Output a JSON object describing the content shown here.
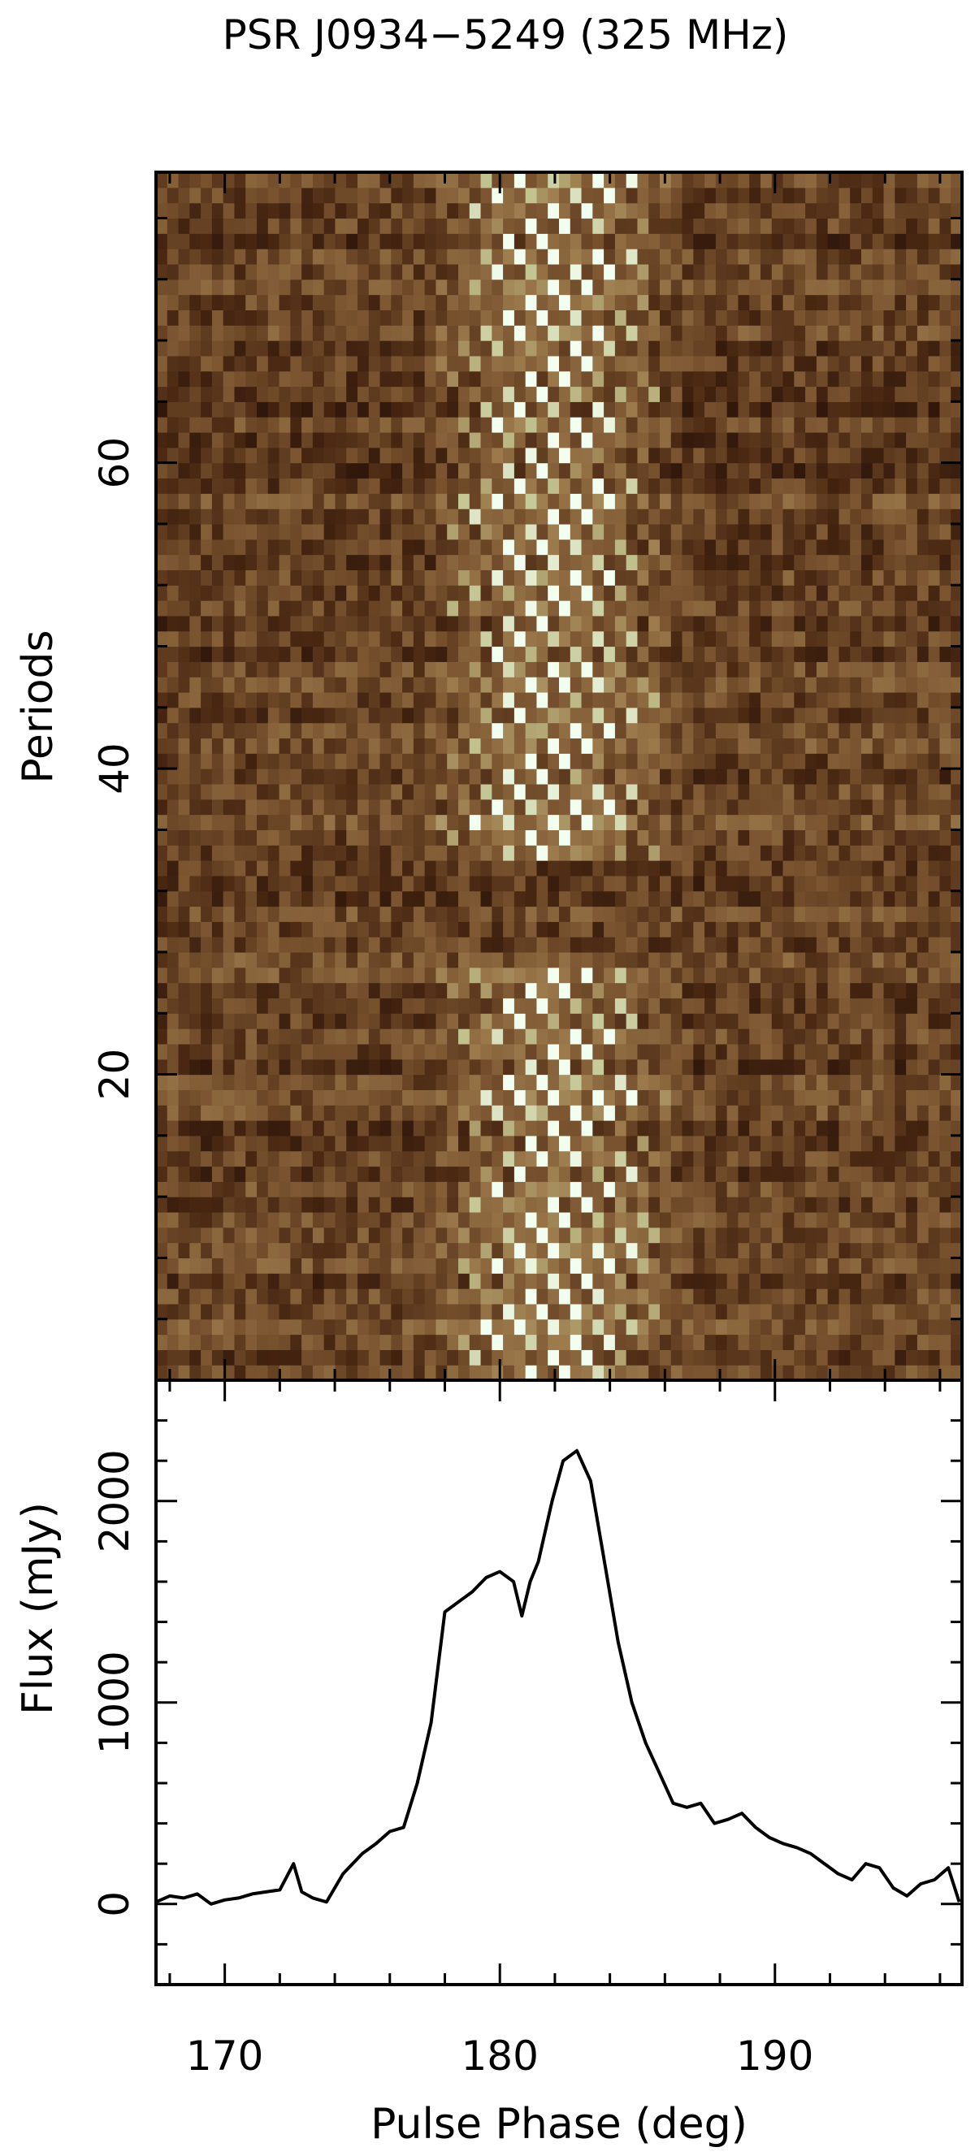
{
  "figure": {
    "title": "PSR J0934−5249 (325 MHz)"
  },
  "chart_data": [
    {
      "type": "heatmap",
      "title": "PSR J0934−5249 (325 MHz)",
      "xlabel": "",
      "ylabel": "Periods",
      "xlim": [
        167.5,
        196.8
      ],
      "ylim": [
        0,
        79
      ],
      "y_ticks": [
        20,
        40,
        60
      ],
      "x_ticks": [
        170,
        180,
        190
      ],
      "colormap": [
        "#1e0c06",
        "#4a2812",
        "#7a5430",
        "#9c7a4c",
        "#c2c490",
        "#f2fff0"
      ],
      "drift_bands": [
        {
          "periods": [
            34,
            79
          ],
          "phase_start": [
            178.6,
            181.5
          ],
          "phase_end": [
            182.2,
            185.4
          ],
          "drift_period": 2.5
        },
        {
          "periods": [
            0,
            27
          ],
          "phase_start": [
            178.6,
            181.8
          ],
          "phase_end": [
            182.2,
            185.6
          ],
          "drift_period": 2.5
        }
      ],
      "nulls": [
        [
          28,
          33
        ]
      ]
    },
    {
      "type": "line",
      "xlabel": "Pulse Phase (deg)",
      "ylabel": "Flux (mJy)",
      "xlim": [
        167.5,
        196.8
      ],
      "ylim": [
        -400,
        2600
      ],
      "y_ticks": [
        0,
        1000,
        2000
      ],
      "x_ticks": [
        170,
        180,
        190
      ],
      "series": [
        {
          "x": [
            167.5,
            168.0,
            168.5,
            169.0,
            169.5,
            170.0,
            170.5,
            171.0,
            171.5,
            172.0,
            172.5,
            172.8,
            173.2,
            173.7,
            174.3,
            175.0,
            175.5,
            176.0,
            176.5,
            177.0,
            177.5,
            178.0,
            178.5,
            179.0,
            179.5,
            180.0,
            180.5,
            180.8,
            181.1,
            181.4,
            181.9,
            182.3,
            182.8,
            183.3,
            183.8,
            184.3,
            184.8,
            185.3,
            185.8,
            186.3,
            186.8,
            187.3,
            187.8,
            188.3,
            188.8,
            189.3,
            189.8,
            190.3,
            190.8,
            191.3,
            191.8,
            192.3,
            192.8,
            193.3,
            193.8,
            194.3,
            194.8,
            195.3,
            195.8,
            196.3,
            196.7
          ],
          "y": [
            10,
            40,
            30,
            50,
            0,
            20,
            30,
            50,
            60,
            70,
            200,
            60,
            30,
            10,
            150,
            250,
            300,
            360,
            380,
            600,
            900,
            1450,
            1500,
            1550,
            1620,
            1650,
            1600,
            1430,
            1600,
            1700,
            2000,
            2200,
            2250,
            2100,
            1700,
            1300,
            1000,
            800,
            650,
            500,
            480,
            500,
            400,
            420,
            450,
            380,
            330,
            300,
            280,
            250,
            200,
            150,
            120,
            200,
            180,
            80,
            40,
            100,
            120,
            180,
            10
          ]
        }
      ]
    }
  ]
}
